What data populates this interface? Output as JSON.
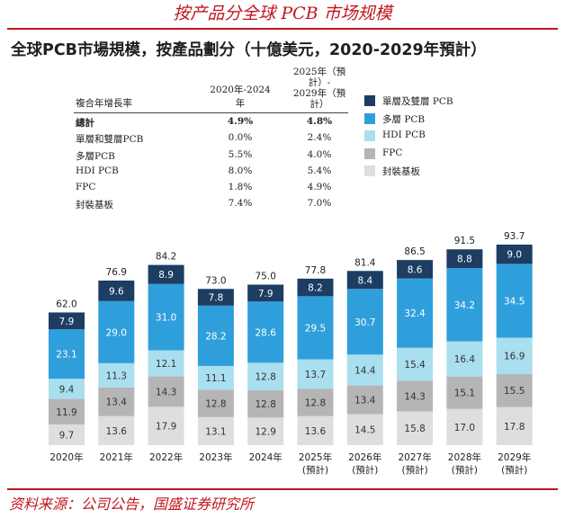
{
  "banner": "按产品分全球 PCB 市场规模",
  "source": "资料来源：公司公告，国盛证券研究所",
  "colors": {
    "accent": "#c0161e",
    "single_double": "#1d3d63",
    "multilayer": "#2f9fdc",
    "hdi": "#a9dfee",
    "fpc": "#b5b5b5",
    "substrate": "#dedede"
  },
  "cagr_table": {
    "header": {
      "label": "複合年增長率",
      "col1": "2020年-2024年",
      "col2_line1": "2025年（預計）-",
      "col2_line2": "2029年（預計）"
    },
    "rows": [
      {
        "label": "總計",
        "v1": "4.9%",
        "v2": "4.8%"
      },
      {
        "label": "單層和雙層PCB",
        "v1": "0.0%",
        "v2": "2.4%"
      },
      {
        "label": "多層PCB",
        "v1": "5.5%",
        "v2": "4.0%"
      },
      {
        "label": "HDI PCB",
        "v1": "8.0%",
        "v2": "5.4%"
      },
      {
        "label": "FPC",
        "v1": "1.8%",
        "v2": "4.9%"
      },
      {
        "label": "封裝基板",
        "v1": "7.4%",
        "v2": "7.0%"
      }
    ]
  },
  "chart_data": {
    "type": "bar",
    "stacked": true,
    "title": "全球PCB市場規模，按產品劃分（十億美元，2020-2029年預計）",
    "categories": [
      {
        "year": "2020年",
        "sub": ""
      },
      {
        "year": "2021年",
        "sub": ""
      },
      {
        "year": "2022年",
        "sub": ""
      },
      {
        "year": "2023年",
        "sub": ""
      },
      {
        "year": "2024年",
        "sub": ""
      },
      {
        "year": "2025年",
        "sub": "(預計)"
      },
      {
        "year": "2026年",
        "sub": "(預計)"
      },
      {
        "year": "2027年",
        "sub": "(預計)"
      },
      {
        "year": "2028年",
        "sub": "(預計)"
      },
      {
        "year": "2029年",
        "sub": "(預計)"
      }
    ],
    "totals": [
      "62.0",
      "76.9",
      "84.2",
      "73.0",
      "75.0",
      "77.8",
      "81.4",
      "86.5",
      "91.5",
      "93.7"
    ],
    "series": [
      {
        "key": "substrate",
        "name": "封裝基板",
        "color": "#dedede",
        "label_color": "#333333",
        "values": [
          9.7,
          13.6,
          17.9,
          13.1,
          12.9,
          13.6,
          14.5,
          15.8,
          17.0,
          17.8
        ]
      },
      {
        "key": "fpc",
        "name": "FPC",
        "color": "#b5b5b5",
        "label_color": "#333333",
        "values": [
          11.9,
          13.4,
          14.3,
          12.8,
          12.8,
          12.8,
          13.4,
          14.3,
          15.1,
          15.5
        ]
      },
      {
        "key": "hdi",
        "name": "HDI PCB",
        "color": "#a9dfee",
        "label_color": "#333333",
        "values": [
          9.4,
          11.3,
          12.1,
          11.1,
          12.8,
          13.7,
          14.4,
          15.4,
          16.4,
          16.9
        ]
      },
      {
        "key": "multilayer",
        "name": "多層 PCB",
        "color": "#2f9fdc",
        "label_color": "#ffffff",
        "values": [
          23.1,
          29.0,
          31.0,
          28.2,
          28.6,
          29.5,
          30.7,
          32.4,
          34.2,
          34.5
        ]
      },
      {
        "key": "single_double",
        "name": "單層及雙層 PCB",
        "color": "#1d3d63",
        "label_color": "#ffffff",
        "values": [
          7.9,
          9.6,
          8.9,
          7.8,
          7.9,
          8.2,
          8.4,
          8.6,
          8.8,
          9.0
        ]
      }
    ],
    "legend_order": [
      "single_double",
      "multilayer",
      "hdi",
      "fpc",
      "substrate"
    ],
    "ylim": [
      0,
      100
    ],
    "grid": false
  }
}
